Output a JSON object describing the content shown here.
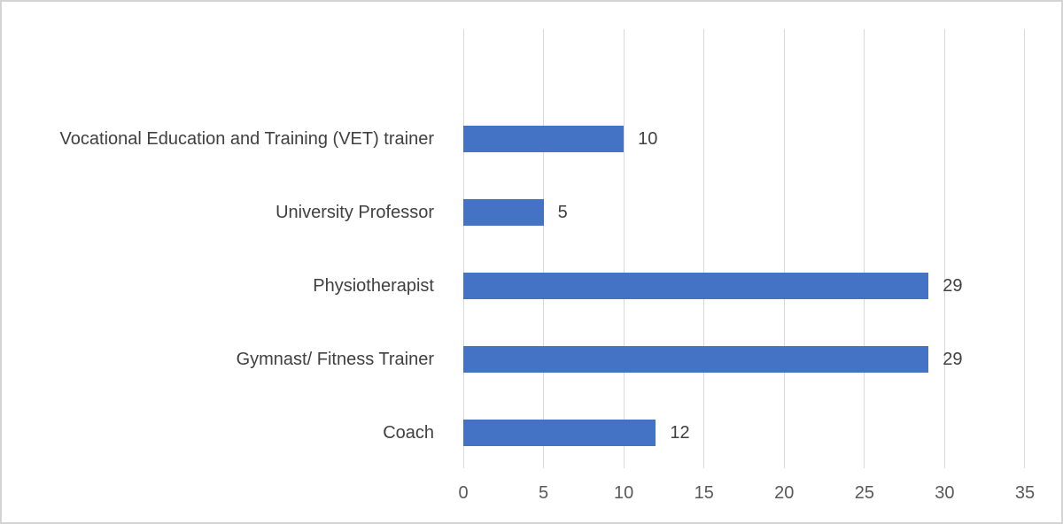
{
  "chart_data": {
    "type": "bar",
    "orientation": "horizontal",
    "title": "",
    "xlabel": "",
    "ylabel": "",
    "categories": [
      "Vocational Education and Training (VET) trainer",
      "University Professor",
      "Physiotherapist",
      "Gymnast/ Fitness Trainer",
      "Coach"
    ],
    "values": [
      10,
      5,
      29,
      29,
      12
    ],
    "data_labels": [
      "10",
      "5",
      "29",
      "29",
      "12"
    ],
    "x_ticks": [
      "0",
      "5",
      "10",
      "15",
      "20",
      "25",
      "30",
      "35"
    ],
    "x_tick_values": [
      0,
      5,
      10,
      15,
      20,
      25,
      30,
      35
    ],
    "xlim": [
      0,
      35
    ],
    "grid": "vertical",
    "legend": "none",
    "colors": {
      "bar": "#4472C4",
      "gridline": "#d9d9d9",
      "category_label": "#404040",
      "value_label": "#404040",
      "tick_label": "#595959",
      "canvas_border": "#d4d4d4",
      "background": "#ffffff"
    }
  }
}
